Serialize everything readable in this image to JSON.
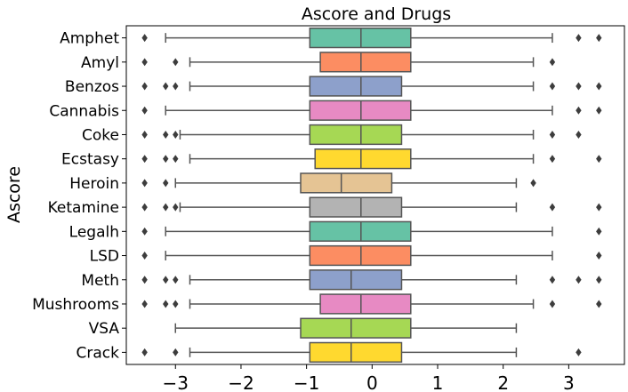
{
  "chart_data": {
    "type": "boxplot",
    "orientation": "horizontal",
    "title": "Ascore and Drugs",
    "xlabel": "",
    "ylabel": "Ascore",
    "xlim": [
      -3.75,
      3.85
    ],
    "xticks": [
      -3,
      -2,
      -1,
      0,
      1,
      2,
      3
    ],
    "xtick_labels": [
      "−3",
      "−2",
      "−1",
      "0",
      "1",
      "2",
      "3"
    ],
    "grid": false,
    "categories": [
      "Amphet",
      "Amyl",
      "Benzos",
      "Cannabis",
      "Coke",
      "Ecstasy",
      "Heroin",
      "Ketamine",
      "Legalh",
      "LSD",
      "Meth",
      "Mushrooms",
      "VSA",
      "Crack"
    ],
    "colors": [
      "#66c2a5",
      "#fc8d62",
      "#8da0cb",
      "#e78ac3",
      "#a6d854",
      "#ffd92f",
      "#e5c494",
      "#b3b3b3",
      "#66c2a5",
      "#fc8d62",
      "#8da0cb",
      "#e78ac3",
      "#a6d854",
      "#ffd92f"
    ],
    "boxes": [
      {
        "whislo": -3.15,
        "q1": -0.95,
        "med": -0.17,
        "q3": 0.59,
        "whishi": 2.75,
        "fliers": [
          -3.47,
          3.15,
          3.46
        ]
      },
      {
        "whislo": -2.78,
        "q1": -0.79,
        "med": -0.17,
        "q3": 0.59,
        "whishi": 2.46,
        "fliers": [
          -3.47,
          -3.0,
          2.75
        ]
      },
      {
        "whislo": -2.78,
        "q1": -0.95,
        "med": -0.17,
        "q3": 0.45,
        "whishi": 2.46,
        "fliers": [
          -3.47,
          -3.15,
          -3.0,
          2.75,
          3.15,
          3.46
        ]
      },
      {
        "whislo": -3.15,
        "q1": -0.95,
        "med": -0.17,
        "q3": 0.59,
        "whishi": 2.75,
        "fliers": [
          -3.47,
          3.15,
          3.46
        ]
      },
      {
        "whislo": -2.93,
        "q1": -0.95,
        "med": -0.17,
        "q3": 0.45,
        "whishi": 2.46,
        "fliers": [
          -3.47,
          -3.15,
          -3.0,
          2.75,
          3.15
        ]
      },
      {
        "whislo": -2.78,
        "q1": -0.87,
        "med": -0.17,
        "q3": 0.59,
        "whishi": 2.46,
        "fliers": [
          -3.47,
          -3.15,
          -3.0,
          2.75,
          3.46
        ]
      },
      {
        "whislo": -3.0,
        "q1": -1.09,
        "med": -0.47,
        "q3": 0.3,
        "whishi": 2.2,
        "fliers": [
          -3.47,
          -3.15,
          2.46
        ]
      },
      {
        "whislo": -2.93,
        "q1": -0.95,
        "med": -0.17,
        "q3": 0.45,
        "whishi": 2.2,
        "fliers": [
          -3.47,
          -3.15,
          -3.0,
          2.75,
          3.46
        ]
      },
      {
        "whislo": -3.15,
        "q1": -0.95,
        "med": -0.17,
        "q3": 0.59,
        "whishi": 2.75,
        "fliers": [
          -3.47,
          3.46
        ]
      },
      {
        "whislo": -3.15,
        "q1": -0.95,
        "med": -0.17,
        "q3": 0.59,
        "whishi": 2.75,
        "fliers": [
          -3.47,
          3.46
        ]
      },
      {
        "whislo": -2.78,
        "q1": -0.95,
        "med": -0.32,
        "q3": 0.45,
        "whishi": 2.2,
        "fliers": [
          -3.47,
          -3.15,
          -3.0,
          2.75,
          3.15,
          3.46
        ]
      },
      {
        "whislo": -2.78,
        "q1": -0.79,
        "med": -0.17,
        "q3": 0.59,
        "whishi": 2.46,
        "fliers": [
          -3.47,
          -3.15,
          -3.0,
          2.75,
          3.46
        ]
      },
      {
        "whislo": -3.0,
        "q1": -1.09,
        "med": -0.32,
        "q3": 0.59,
        "whishi": 2.2,
        "fliers": []
      },
      {
        "whislo": -2.78,
        "q1": -0.95,
        "med": -0.32,
        "q3": 0.45,
        "whishi": 2.2,
        "fliers": [
          -3.47,
          -3.0,
          3.15
        ]
      }
    ]
  }
}
